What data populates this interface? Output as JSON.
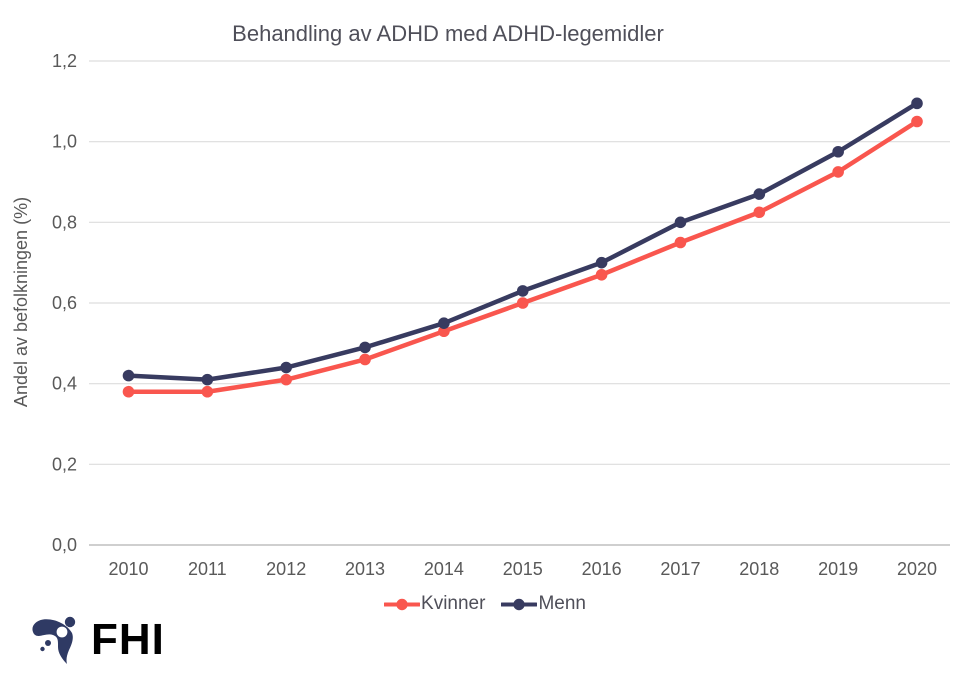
{
  "chart_data": {
    "type": "line",
    "title": "Behandling av ADHD med ADHD-legemidler",
    "xlabel": "",
    "ylabel": "Andel av befolkningen (%)",
    "categories": [
      "2010",
      "2011",
      "2012",
      "2013",
      "2014",
      "2015",
      "2016",
      "2017",
      "2018",
      "2019",
      "2020"
    ],
    "series": [
      {
        "name": "Kvinner",
        "color": "#F9564E",
        "values": [
          0.38,
          0.38,
          0.41,
          0.46,
          0.53,
          0.6,
          0.67,
          0.75,
          0.825,
          0.925,
          1.05
        ]
      },
      {
        "name": "Menn",
        "color": "#383B60",
        "values": [
          0.42,
          0.41,
          0.44,
          0.49,
          0.55,
          0.63,
          0.7,
          0.8,
          0.87,
          0.975,
          1.095
        ]
      }
    ],
    "ylim": [
      0,
      1.2
    ],
    "y_ticks": [
      {
        "v": 0.0,
        "label": "0,0"
      },
      {
        "v": 0.2,
        "label": "0,2"
      },
      {
        "v": 0.4,
        "label": "0,4"
      },
      {
        "v": 0.6,
        "label": "0,6"
      },
      {
        "v": 0.8,
        "label": "0,8"
      },
      {
        "v": 1.0,
        "label": "1,0"
      },
      {
        "v": 1.2,
        "label": "1,2"
      }
    ],
    "grid": "horizontal",
    "legend_position": "bottom",
    "marker": "circle"
  },
  "colors": {
    "gridline": "#DDDDDD",
    "axis_line": "#BFBFBF",
    "tick_text": "#595959",
    "title_text": "#4F4F59",
    "legend_text": "#4F4F59",
    "background": "#FFFFFF"
  },
  "branding": {
    "logo_text": "FHI",
    "logo_color": "#2F3A64"
  }
}
